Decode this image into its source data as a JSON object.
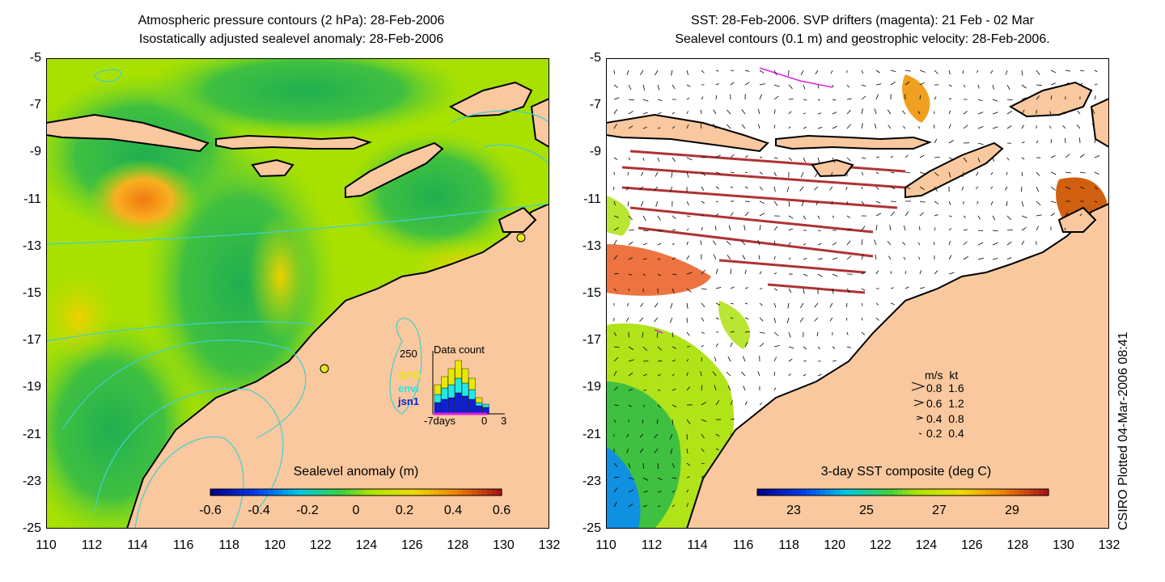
{
  "left_panel": {
    "title_line1": "Atmospheric pressure contours (2 hPa): 28-Feb-2006",
    "title_line2": "Isostatically adjusted sealevel anomaly: 28-Feb-2006",
    "colorbar": {
      "title": "Sealevel anomaly (m)",
      "ticks": [
        "-0.6",
        "-0.4",
        "-0.2",
        "0",
        "0.2",
        "0.4",
        "0.6"
      ],
      "range": [
        -0.6,
        0.6
      ]
    },
    "inset": {
      "title": "Data count",
      "y_label": "250",
      "sources": [
        "GFO",
        "envi",
        "jsn1"
      ],
      "source_colors": [
        "#e8e800",
        "#22e8e8",
        "#1020d0"
      ],
      "x_labels": [
        "-7days",
        "0",
        "3"
      ]
    }
  },
  "right_panel": {
    "title_line1": "SST: 28-Feb-2006. SVP drifters (magenta): 21 Feb - 02 Mar",
    "title_line2": "Sealevel contours (0.1 m) and geostrophic velocity: 28-Feb-2006.",
    "colorbar": {
      "title": "3-day SST composite (deg C)",
      "ticks": [
        "23",
        "25",
        "27",
        "29"
      ],
      "range": [
        22,
        30
      ]
    },
    "velocity_legend": {
      "header_ms": "m/s",
      "header_kt": "kt",
      "rows": [
        {
          "ms": "0.8",
          "kt": "1.6"
        },
        {
          "ms": "0.6",
          "kt": "1.2"
        },
        {
          "ms": "0.4",
          "kt": "0.8"
        },
        {
          "ms": "0.2",
          "kt": "0.4"
        }
      ]
    }
  },
  "axes": {
    "y_ticks": [
      "-5",
      "-7",
      "-9",
      "-11",
      "-13",
      "-15",
      "-17",
      "-19",
      "-21",
      "-23",
      "-25"
    ],
    "x_ticks": [
      "110",
      "112",
      "114",
      "116",
      "118",
      "120",
      "122",
      "124",
      "126",
      "128",
      "130",
      "132"
    ],
    "lon_range": [
      110,
      132
    ],
    "lat_range": [
      -25,
      -5
    ]
  },
  "credit": "CSIRO Plotted 04-Mar-2006 08:41",
  "colors": {
    "land": "#f9c89e",
    "ocean_mid": "#a8e000",
    "ocean_green": "#40c040",
    "contour": "#40d0d0",
    "magenta": "#e020e0"
  }
}
